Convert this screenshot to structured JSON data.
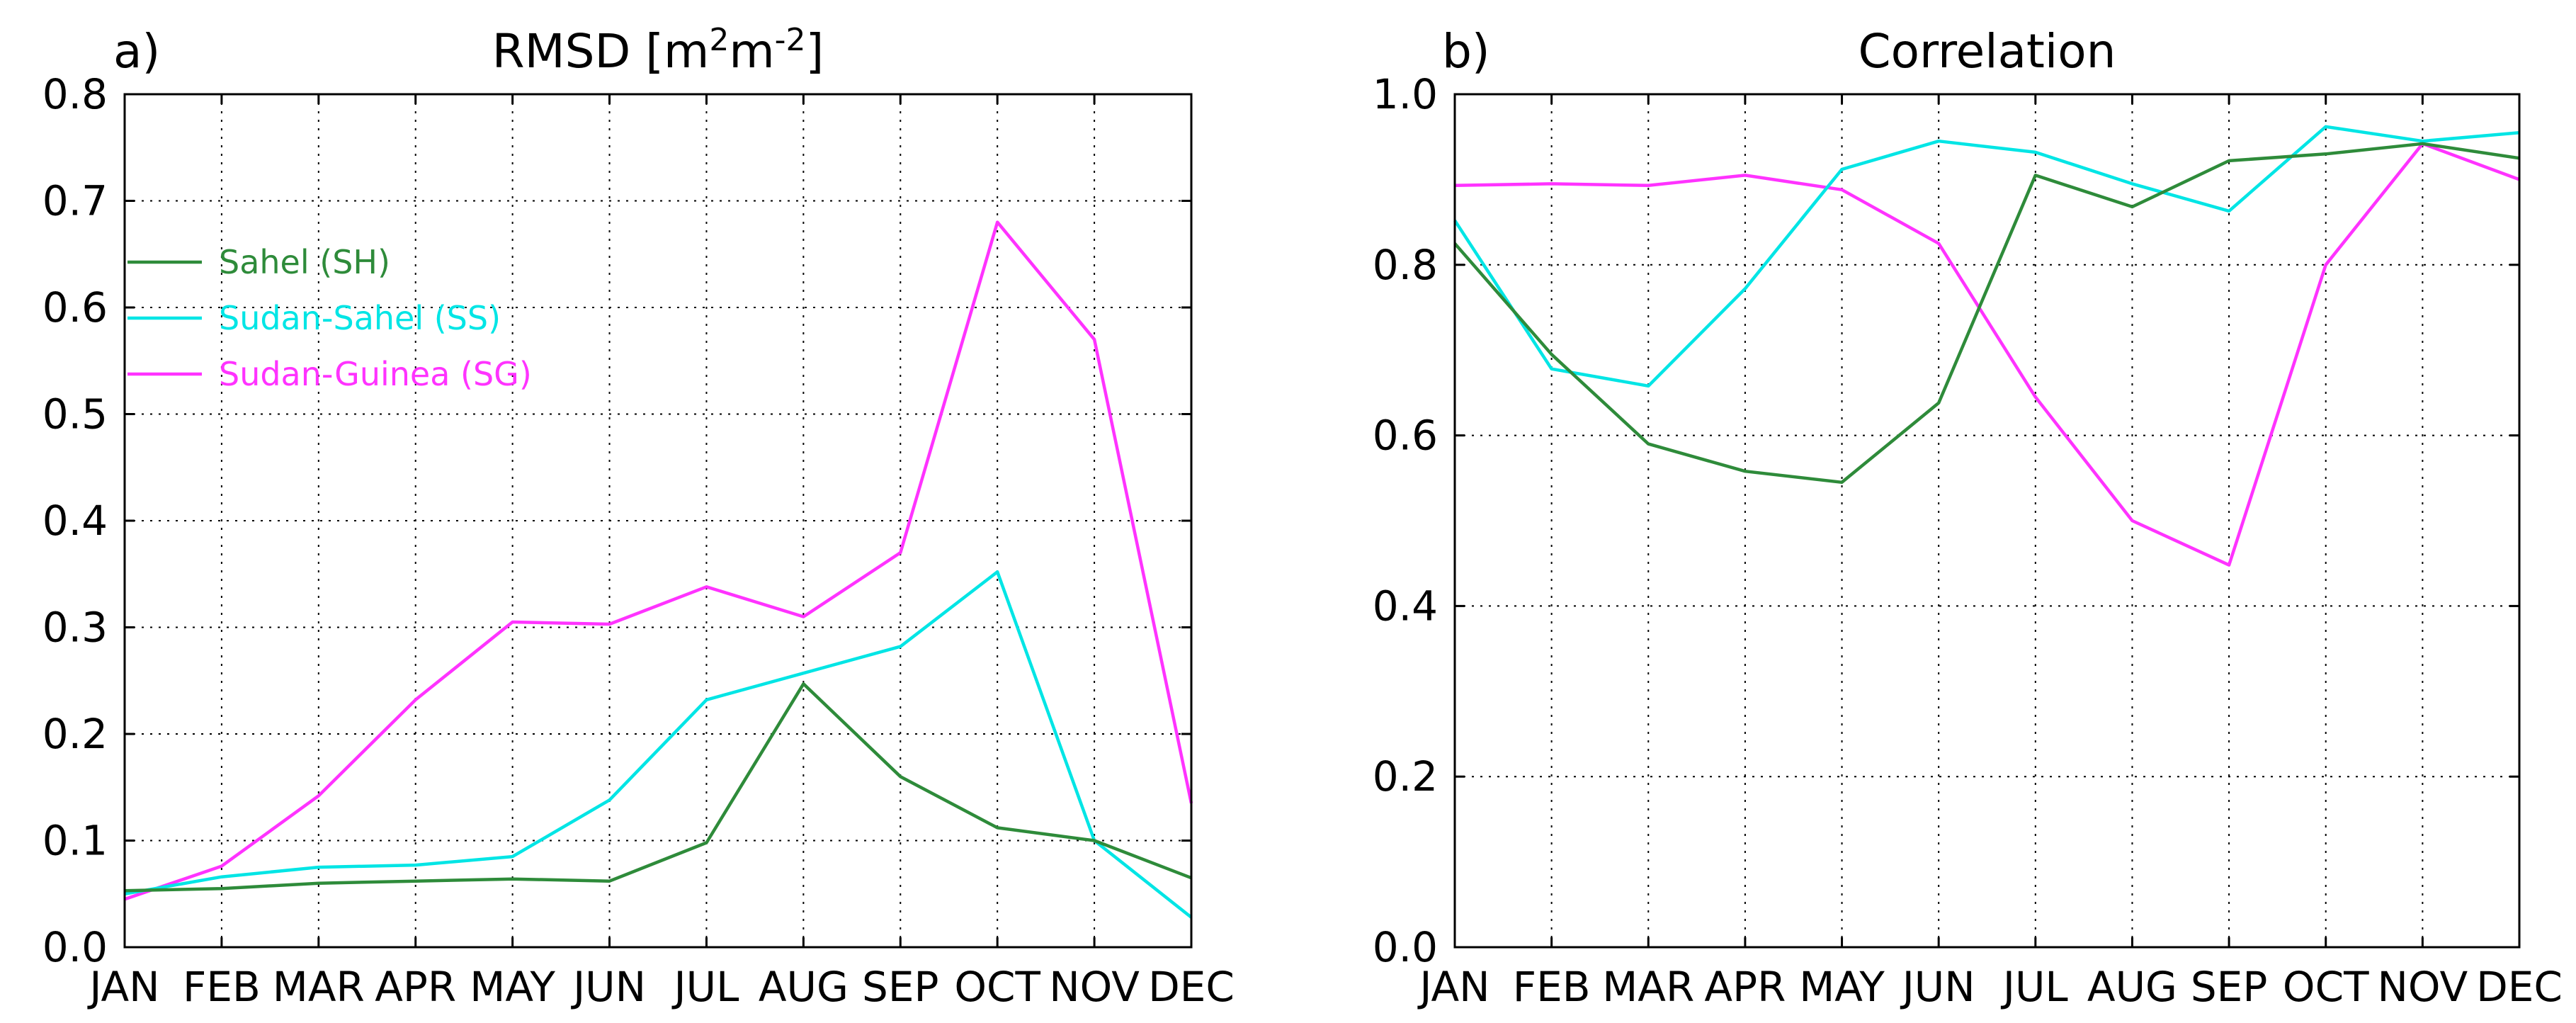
{
  "chart_data": [
    {
      "type": "line",
      "panel_label": "a)",
      "title": "RMSD [m",
      "title_sup1": "2",
      "title_mid": "m",
      "title_sup2": "-2",
      "title_end": "]",
      "xlabel": "",
      "ylabel": "",
      "categories": [
        "JAN",
        "FEB",
        "MAR",
        "APR",
        "MAY",
        "JUN",
        "JUL",
        "AUG",
        "SEP",
        "OCT",
        "NOV",
        "DEC"
      ],
      "ylim": [
        0,
        0.8
      ],
      "yticks": [
        "0.0",
        "0.1",
        "0.2",
        "0.3",
        "0.4",
        "0.5",
        "0.6",
        "0.7",
        "0.8"
      ],
      "grid": true,
      "legend_position": "upper-left",
      "series": [
        {
          "name": "Sahel (SH)",
          "color": "#2e8b3a",
          "values": [
            0.053,
            0.055,
            0.06,
            0.062,
            0.064,
            0.062,
            0.098,
            0.247,
            0.16,
            0.112,
            0.1,
            0.065
          ]
        },
        {
          "name": "Sudan-Sahel (SS)",
          "color": "#00e5e5",
          "values": [
            0.05,
            0.066,
            0.075,
            0.077,
            0.085,
            0.138,
            0.232,
            0.257,
            0.282,
            0.352,
            0.1,
            0.028
          ]
        },
        {
          "name": "Sudan-Guinea (SG)",
          "color": "#ff33ff",
          "values": [
            0.045,
            0.076,
            0.142,
            0.232,
            0.305,
            0.303,
            0.338,
            0.31,
            0.37,
            0.68,
            0.57,
            0.135
          ]
        }
      ]
    },
    {
      "type": "line",
      "panel_label": "b)",
      "title": "Correlation",
      "xlabel": "",
      "ylabel": "",
      "categories": [
        "JAN",
        "FEB",
        "MAR",
        "APR",
        "MAY",
        "JUN",
        "JUL",
        "AUG",
        "SEP",
        "OCT",
        "NOV",
        "DEC"
      ],
      "ylim": [
        0,
        1.0
      ],
      "yticks": [
        "0.0",
        "0.2",
        "0.4",
        "0.6",
        "0.8",
        "1.0"
      ],
      "grid": true,
      "legend_position": "none",
      "series": [
        {
          "name": "Sahel (SH)",
          "color": "#2e8b3a",
          "values": [
            0.825,
            0.695,
            0.59,
            0.558,
            0.545,
            0.638,
            0.905,
            0.868,
            0.922,
            0.93,
            0.942,
            0.925
          ]
        },
        {
          "name": "Sudan-Sahel (SS)",
          "color": "#00e5e5",
          "values": [
            0.852,
            0.678,
            0.658,
            0.772,
            0.912,
            0.945,
            0.932,
            0.895,
            0.863,
            0.962,
            0.945,
            0.955
          ]
        },
        {
          "name": "Sudan-Guinea (SG)",
          "color": "#ff33ff",
          "values": [
            0.893,
            0.895,
            0.893,
            0.905,
            0.888,
            0.825,
            0.645,
            0.5,
            0.448,
            0.8,
            0.942,
            0.9
          ]
        }
      ]
    }
  ]
}
